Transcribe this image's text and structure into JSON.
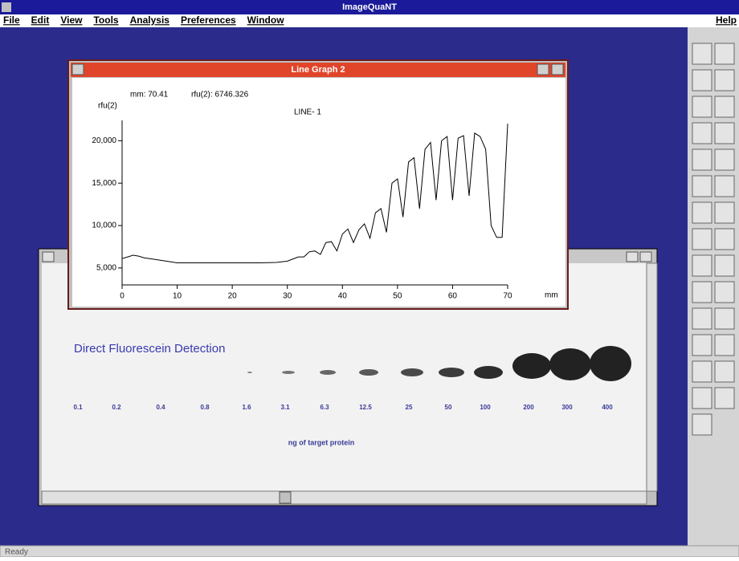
{
  "app": {
    "title": "ImageQuaNT",
    "menu": [
      "File",
      "Edit",
      "View",
      "Tools",
      "Analysis",
      "Preferences",
      "Window"
    ],
    "help": "Help",
    "status": "Ready"
  },
  "graph_window": {
    "title": "Line Graph 2",
    "readout_mm": "mm: 70.41",
    "readout_rfu": "rfu(2): 6746.326",
    "line_label": "LINE- 1"
  },
  "gel": {
    "title": "Direct Fluorescein Detection",
    "lanes": [
      "0.1",
      "0.2",
      "0.4",
      "0.8",
      "1.6",
      "3.1",
      "6.3",
      "12.5",
      "25",
      "50",
      "100",
      "200",
      "300",
      "400"
    ],
    "x_label": "ng of target protein"
  },
  "chart_data": {
    "type": "line",
    "y_label": "rfu(2)",
    "x_label": "mm",
    "x": [
      0,
      1,
      2,
      3,
      4,
      6,
      8,
      10,
      15,
      20,
      25,
      28,
      30,
      32,
      33,
      34,
      35,
      36,
      37,
      38,
      39,
      40,
      41,
      42,
      43,
      44,
      45,
      46,
      47,
      48,
      49,
      50,
      51,
      52,
      53,
      54,
      55,
      56,
      57,
      58,
      59,
      60,
      61,
      62,
      63,
      64,
      65,
      66,
      67,
      68,
      69,
      70
    ],
    "series": [
      {
        "color": "#000000",
        "values": [
          6100,
          6300,
          6500,
          6400,
          6200,
          6000,
          5800,
          5600,
          5600,
          5600,
          5600,
          5650,
          5800,
          6300,
          6300,
          6900,
          7000,
          6600,
          8000,
          8100,
          7000,
          9000,
          9600,
          8000,
          9500,
          10200,
          8500,
          11500,
          12000,
          9200,
          15000,
          15500,
          11000,
          17500,
          18000,
          12000,
          19000,
          19800,
          13000,
          20000,
          20500,
          13000,
          20300,
          20600,
          13500,
          20900,
          20500,
          19000,
          10000,
          8600,
          8600,
          22000
        ]
      }
    ],
    "xlim": [
      0,
      70
    ],
    "ylim": [
      3000,
      22400
    ],
    "xticks": [
      0,
      10,
      20,
      30,
      40,
      50,
      60,
      70
    ],
    "yticks": [
      {
        "value": 5000,
        "label": "5,000"
      },
      {
        "value": 10000,
        "label": "10,000"
      },
      {
        "value": 15000,
        "label": "15,000"
      },
      {
        "value": 20000,
        "label": "20,000"
      }
    ]
  }
}
